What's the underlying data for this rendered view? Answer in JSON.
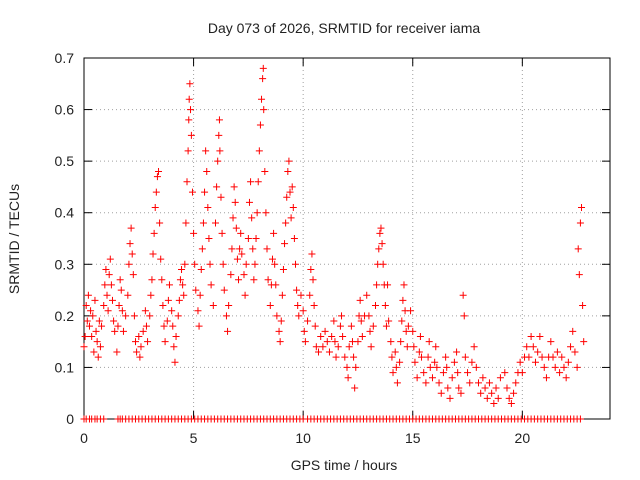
{
  "chart_data": {
    "type": "scatter",
    "title": "Day 073 of 2026, SRMTID for receiver iama",
    "xlabel": "GPS time / hours",
    "ylabel": "SRMTID / TECUs",
    "xlim": [
      0,
      24
    ],
    "ylim": [
      0,
      0.7
    ],
    "xticks": [
      0,
      5,
      10,
      15,
      20
    ],
    "yticks": [
      0,
      0.1,
      0.2,
      0.3,
      0.4,
      0.5,
      0.6,
      0.7
    ],
    "grid": true,
    "marker": "+",
    "series_color": "#ff0000",
    "points": [
      [
        0.0,
        0.14
      ],
      [
        0.05,
        0.16
      ],
      [
        0.1,
        0.22
      ],
      [
        0.15,
        0.19
      ],
      [
        0.2,
        0.24
      ],
      [
        0.25,
        0.18
      ],
      [
        0.3,
        0.21
      ],
      [
        0.35,
        0.16
      ],
      [
        0.4,
        0.2
      ],
      [
        0.45,
        0.13
      ],
      [
        0.5,
        0.23
      ],
      [
        0.55,
        0.17
      ],
      [
        0.6,
        0.15
      ],
      [
        0.65,
        0.12
      ],
      [
        0.7,
        0.19
      ],
      [
        0.75,
        0.14
      ],
      [
        0.8,
        0.18
      ],
      [
        0.9,
        0.22
      ],
      [
        0.95,
        0.26
      ],
      [
        1.0,
        0.29
      ],
      [
        1.05,
        0.24
      ],
      [
        1.1,
        0.21
      ],
      [
        1.15,
        0.28
      ],
      [
        1.2,
        0.31
      ],
      [
        1.25,
        0.26
      ],
      [
        1.3,
        0.23
      ],
      [
        1.35,
        0.19
      ],
      [
        1.4,
        0.17
      ],
      [
        1.5,
        0.13
      ],
      [
        1.55,
        0.18
      ],
      [
        1.6,
        0.22
      ],
      [
        1.65,
        0.27
      ],
      [
        1.7,
        0.25
      ],
      [
        1.75,
        0.21
      ],
      [
        1.8,
        0.17
      ],
      [
        1.9,
        0.2
      ],
      [
        2.0,
        0.24
      ],
      [
        2.05,
        0.3
      ],
      [
        2.1,
        0.34
      ],
      [
        2.15,
        0.37
      ],
      [
        2.2,
        0.32
      ],
      [
        2.25,
        0.28
      ],
      [
        2.3,
        0.2
      ],
      [
        2.35,
        0.15
      ],
      [
        2.4,
        0.13
      ],
      [
        2.5,
        0.16
      ],
      [
        2.55,
        0.12
      ],
      [
        2.6,
        0.14
      ],
      [
        2.7,
        0.17
      ],
      [
        2.8,
        0.21
      ],
      [
        2.85,
        0.18
      ],
      [
        2.9,
        0.15
      ],
      [
        3.0,
        0.2
      ],
      [
        3.05,
        0.24
      ],
      [
        3.1,
        0.27
      ],
      [
        3.15,
        0.32
      ],
      [
        3.2,
        0.36
      ],
      [
        3.25,
        0.41
      ],
      [
        3.3,
        0.44
      ],
      [
        3.35,
        0.47
      ],
      [
        3.4,
        0.48
      ],
      [
        3.45,
        0.38
      ],
      [
        3.5,
        0.31
      ],
      [
        3.55,
        0.27
      ],
      [
        3.6,
        0.22
      ],
      [
        3.65,
        0.18
      ],
      [
        3.7,
        0.15
      ],
      [
        3.8,
        0.19
      ],
      [
        3.85,
        0.23
      ],
      [
        3.9,
        0.26
      ],
      [
        4.0,
        0.21
      ],
      [
        4.05,
        0.18
      ],
      [
        4.1,
        0.14
      ],
      [
        4.15,
        0.11
      ],
      [
        4.2,
        0.16
      ],
      [
        4.3,
        0.2
      ],
      [
        4.35,
        0.23
      ],
      [
        4.4,
        0.27
      ],
      [
        4.45,
        0.29
      ],
      [
        4.5,
        0.26
      ],
      [
        4.55,
        0.24
      ],
      [
        4.6,
        0.3
      ],
      [
        4.65,
        0.38
      ],
      [
        4.7,
        0.46
      ],
      [
        4.75,
        0.52
      ],
      [
        4.78,
        0.58
      ],
      [
        4.8,
        0.62
      ],
      [
        4.83,
        0.65
      ],
      [
        4.86,
        0.6
      ],
      [
        4.9,
        0.55
      ],
      [
        4.95,
        0.44
      ],
      [
        5.0,
        0.36
      ],
      [
        5.05,
        0.3
      ],
      [
        5.1,
        0.25
      ],
      [
        5.2,
        0.21
      ],
      [
        5.25,
        0.18
      ],
      [
        5.3,
        0.24
      ],
      [
        5.35,
        0.29
      ],
      [
        5.4,
        0.33
      ],
      [
        5.45,
        0.38
      ],
      [
        5.5,
        0.44
      ],
      [
        5.55,
        0.52
      ],
      [
        5.6,
        0.48
      ],
      [
        5.65,
        0.41
      ],
      [
        5.7,
        0.35
      ],
      [
        5.75,
        0.3
      ],
      [
        5.8,
        0.26
      ],
      [
        5.9,
        0.22
      ],
      [
        6.0,
        0.38
      ],
      [
        6.05,
        0.45
      ],
      [
        6.1,
        0.5
      ],
      [
        6.15,
        0.55
      ],
      [
        6.18,
        0.58
      ],
      [
        6.2,
        0.52
      ],
      [
        6.25,
        0.43
      ],
      [
        6.3,
        0.36
      ],
      [
        6.35,
        0.3
      ],
      [
        6.4,
        0.25
      ],
      [
        6.5,
        0.2
      ],
      [
        6.55,
        0.17
      ],
      [
        6.6,
        0.22
      ],
      [
        6.7,
        0.28
      ],
      [
        6.75,
        0.33
      ],
      [
        6.8,
        0.39
      ],
      [
        6.85,
        0.45
      ],
      [
        6.9,
        0.42
      ],
      [
        6.95,
        0.37
      ],
      [
        7.0,
        0.31
      ],
      [
        7.05,
        0.27
      ],
      [
        7.1,
        0.33
      ],
      [
        7.15,
        0.36
      ],
      [
        7.2,
        0.32
      ],
      [
        7.3,
        0.28
      ],
      [
        7.35,
        0.24
      ],
      [
        7.4,
        0.3
      ],
      [
        7.5,
        0.35
      ],
      [
        7.55,
        0.42
      ],
      [
        7.6,
        0.46
      ],
      [
        7.65,
        0.39
      ],
      [
        7.7,
        0.33
      ],
      [
        7.75,
        0.27
      ],
      [
        7.8,
        0.3
      ],
      [
        7.85,
        0.35
      ],
      [
        7.9,
        0.4
      ],
      [
        7.95,
        0.46
      ],
      [
        8.0,
        0.52
      ],
      [
        8.05,
        0.57
      ],
      [
        8.1,
        0.62
      ],
      [
        8.15,
        0.66
      ],
      [
        8.18,
        0.68
      ],
      [
        8.2,
        0.6
      ],
      [
        8.25,
        0.48
      ],
      [
        8.3,
        0.4
      ],
      [
        8.35,
        0.33
      ],
      [
        8.4,
        0.27
      ],
      [
        8.5,
        0.22
      ],
      [
        8.55,
        0.26
      ],
      [
        8.6,
        0.31
      ],
      [
        8.65,
        0.36
      ],
      [
        8.7,
        0.3
      ],
      [
        8.75,
        0.26
      ],
      [
        8.8,
        0.2
      ],
      [
        8.9,
        0.17
      ],
      [
        8.95,
        0.15
      ],
      [
        9.0,
        0.19
      ],
      [
        9.05,
        0.24
      ],
      [
        9.1,
        0.29
      ],
      [
        9.15,
        0.34
      ],
      [
        9.2,
        0.38
      ],
      [
        9.25,
        0.43
      ],
      [
        9.3,
        0.48
      ],
      [
        9.35,
        0.5
      ],
      [
        9.4,
        0.44
      ],
      [
        9.45,
        0.39
      ],
      [
        9.5,
        0.45
      ],
      [
        9.55,
        0.41
      ],
      [
        9.6,
        0.35
      ],
      [
        9.65,
        0.3
      ],
      [
        9.7,
        0.25
      ],
      [
        9.75,
        0.22
      ],
      [
        9.8,
        0.2
      ],
      [
        9.9,
        0.24
      ],
      [
        10.0,
        0.21
      ],
      [
        10.05,
        0.17
      ],
      [
        10.1,
        0.15
      ],
      [
        10.2,
        0.19
      ],
      [
        10.3,
        0.24
      ],
      [
        10.35,
        0.29
      ],
      [
        10.4,
        0.32
      ],
      [
        10.45,
        0.27
      ],
      [
        10.5,
        0.22
      ],
      [
        10.55,
        0.18
      ],
      [
        10.6,
        0.14
      ],
      [
        10.7,
        0.13
      ],
      [
        10.8,
        0.16
      ],
      [
        10.9,
        0.14
      ],
      [
        11.0,
        0.17
      ],
      [
        11.1,
        0.15
      ],
      [
        11.2,
        0.13
      ],
      [
        11.3,
        0.16
      ],
      [
        11.4,
        0.19
      ],
      [
        11.45,
        0.15
      ],
      [
        11.5,
        0.12
      ],
      [
        11.6,
        0.14
      ],
      [
        11.7,
        0.18
      ],
      [
        11.75,
        0.2
      ],
      [
        11.8,
        0.16
      ],
      [
        11.9,
        0.12
      ],
      [
        12.0,
        0.1
      ],
      [
        12.05,
        0.08
      ],
      [
        12.1,
        0.14
      ],
      [
        12.2,
        0.18
      ],
      [
        12.25,
        0.15
      ],
      [
        12.3,
        0.12
      ],
      [
        12.35,
        0.06
      ],
      [
        12.4,
        0.1
      ],
      [
        12.5,
        0.15
      ],
      [
        12.55,
        0.2
      ],
      [
        12.6,
        0.23
      ],
      [
        12.65,
        0.19
      ],
      [
        12.7,
        0.16
      ],
      [
        12.8,
        0.2
      ],
      [
        12.9,
        0.24
      ],
      [
        13.0,
        0.2
      ],
      [
        13.05,
        0.17
      ],
      [
        13.1,
        0.14
      ],
      [
        13.2,
        0.18
      ],
      [
        13.3,
        0.22
      ],
      [
        13.35,
        0.26
      ],
      [
        13.4,
        0.3
      ],
      [
        13.45,
        0.33
      ],
      [
        13.5,
        0.36
      ],
      [
        13.55,
        0.37
      ],
      [
        13.6,
        0.34
      ],
      [
        13.65,
        0.3
      ],
      [
        13.7,
        0.26
      ],
      [
        13.75,
        0.22
      ],
      [
        13.8,
        0.18
      ],
      [
        13.85,
        0.26
      ],
      [
        13.9,
        0.19
      ],
      [
        14.0,
        0.15
      ],
      [
        14.05,
        0.12
      ],
      [
        14.1,
        0.09
      ],
      [
        14.2,
        0.13
      ],
      [
        14.25,
        0.1
      ],
      [
        14.3,
        0.07
      ],
      [
        14.4,
        0.11
      ],
      [
        14.45,
        0.15
      ],
      [
        14.5,
        0.19
      ],
      [
        14.55,
        0.23
      ],
      [
        14.6,
        0.26
      ],
      [
        14.65,
        0.21
      ],
      [
        14.7,
        0.17
      ],
      [
        14.75,
        0.14
      ],
      [
        14.8,
        0.18
      ],
      [
        14.9,
        0.21
      ],
      [
        15.0,
        0.17
      ],
      [
        15.05,
        0.14
      ],
      [
        15.1,
        0.11
      ],
      [
        15.2,
        0.08
      ],
      [
        15.3,
        0.13
      ],
      [
        15.35,
        0.16
      ],
      [
        15.4,
        0.12
      ],
      [
        15.5,
        0.09
      ],
      [
        15.6,
        0.07
      ],
      [
        15.7,
        0.12
      ],
      [
        15.75,
        0.15
      ],
      [
        15.8,
        0.1
      ],
      [
        15.9,
        0.08
      ],
      [
        16.0,
        0.11
      ],
      [
        16.05,
        0.14
      ],
      [
        16.1,
        0.1
      ],
      [
        16.2,
        0.07
      ],
      [
        16.3,
        0.05
      ],
      [
        16.4,
        0.09
      ],
      [
        16.5,
        0.12
      ],
      [
        16.55,
        0.1
      ],
      [
        16.6,
        0.06
      ],
      [
        16.7,
        0.04
      ],
      [
        16.8,
        0.08
      ],
      [
        16.9,
        0.11
      ],
      [
        17.0,
        0.13
      ],
      [
        17.05,
        0.09
      ],
      [
        17.1,
        0.06
      ],
      [
        17.2,
        0.05
      ],
      [
        17.3,
        0.24
      ],
      [
        17.35,
        0.2
      ],
      [
        17.4,
        0.12
      ],
      [
        17.5,
        0.09
      ],
      [
        17.6,
        0.07
      ],
      [
        17.7,
        0.11
      ],
      [
        17.8,
        0.14
      ],
      [
        17.9,
        0.1
      ],
      [
        18.0,
        0.07
      ],
      [
        18.1,
        0.05
      ],
      [
        18.2,
        0.08
      ],
      [
        18.3,
        0.06
      ],
      [
        18.4,
        0.04
      ],
      [
        18.5,
        0.07
      ],
      [
        18.6,
        0.05
      ],
      [
        18.7,
        0.03
      ],
      [
        18.8,
        0.06
      ],
      [
        18.9,
        0.04
      ],
      [
        19.0,
        0.08
      ],
      [
        19.2,
        0.09
      ],
      [
        19.3,
        0.06
      ],
      [
        19.4,
        0.04
      ],
      [
        19.5,
        0.03
      ],
      [
        19.6,
        0.05
      ],
      [
        19.7,
        0.07
      ],
      [
        19.8,
        0.09
      ],
      [
        19.9,
        0.11
      ],
      [
        20.0,
        0.09
      ],
      [
        20.1,
        0.12
      ],
      [
        20.2,
        0.14
      ],
      [
        20.3,
        0.12
      ],
      [
        20.4,
        0.16
      ],
      [
        20.5,
        0.14
      ],
      [
        20.6,
        0.11
      ],
      [
        20.7,
        0.13
      ],
      [
        20.8,
        0.16
      ],
      [
        20.9,
        0.12
      ],
      [
        21.0,
        0.1
      ],
      [
        21.1,
        0.08
      ],
      [
        21.2,
        0.12
      ],
      [
        21.3,
        0.15
      ],
      [
        21.4,
        0.12
      ],
      [
        21.5,
        0.1
      ],
      [
        21.6,
        0.13
      ],
      [
        21.7,
        0.09
      ],
      [
        21.8,
        0.12
      ],
      [
        21.9,
        0.1
      ],
      [
        22.0,
        0.08
      ],
      [
        22.1,
        0.11
      ],
      [
        22.2,
        0.14
      ],
      [
        22.3,
        0.17
      ],
      [
        22.4,
        0.13
      ],
      [
        22.5,
        0.1
      ],
      [
        22.55,
        0.33
      ],
      [
        22.6,
        0.28
      ],
      [
        22.65,
        0.38
      ],
      [
        22.7,
        0.41
      ],
      [
        22.75,
        0.22
      ],
      [
        22.8,
        0.15
      ]
    ],
    "zero_points_x": [
      0.0,
      0.1,
      0.25,
      0.35,
      0.5,
      0.6,
      0.75,
      0.9,
      1.55,
      1.65,
      1.75,
      1.9,
      2.05,
      2.2,
      2.35,
      2.5,
      2.65,
      2.8,
      2.95,
      3.1,
      3.25,
      3.4,
      3.55,
      3.7,
      3.85,
      4.0,
      4.15,
      4.3,
      4.45,
      4.6,
      4.75,
      4.9,
      5.05,
      5.2,
      5.35,
      5.5,
      5.65,
      5.8,
      5.95,
      6.1,
      6.25,
      6.4,
      6.55,
      6.7,
      6.85,
      7.0,
      7.15,
      7.3,
      7.45,
      7.6,
      7.75,
      7.9,
      8.05,
      8.2,
      8.35,
      8.5,
      8.65,
      8.8,
      8.95,
      9.1,
      9.25,
      9.4,
      9.55,
      9.7,
      9.85,
      10.0,
      10.2,
      10.35,
      10.5,
      10.65,
      10.8,
      10.95,
      11.1,
      11.25,
      11.4,
      11.55,
      11.7,
      11.85,
      12.0,
      12.15,
      12.3,
      12.45,
      12.6,
      12.75,
      12.9,
      13.05,
      13.2,
      13.35,
      13.5,
      13.65,
      13.8,
      13.95,
      14.1,
      14.25,
      14.4,
      14.55,
      14.7,
      14.85,
      15.0,
      15.15,
      15.3,
      15.45,
      15.6,
      15.75,
      15.9,
      16.05,
      16.2,
      16.35,
      16.5,
      16.65,
      16.8,
      16.95,
      17.1,
      17.25,
      17.4,
      17.55,
      17.7,
      17.85,
      18.0,
      18.15,
      18.3,
      18.45,
      18.6,
      18.75,
      18.9,
      19.05,
      19.2,
      19.35,
      19.5,
      19.65,
      19.8,
      19.95,
      20.1,
      20.25,
      20.4,
      20.55,
      20.7,
      20.85,
      21.0,
      21.15,
      21.3,
      21.45,
      21.6,
      21.75,
      21.9,
      22.05,
      22.2,
      22.35,
      22.5,
      22.65
    ]
  }
}
